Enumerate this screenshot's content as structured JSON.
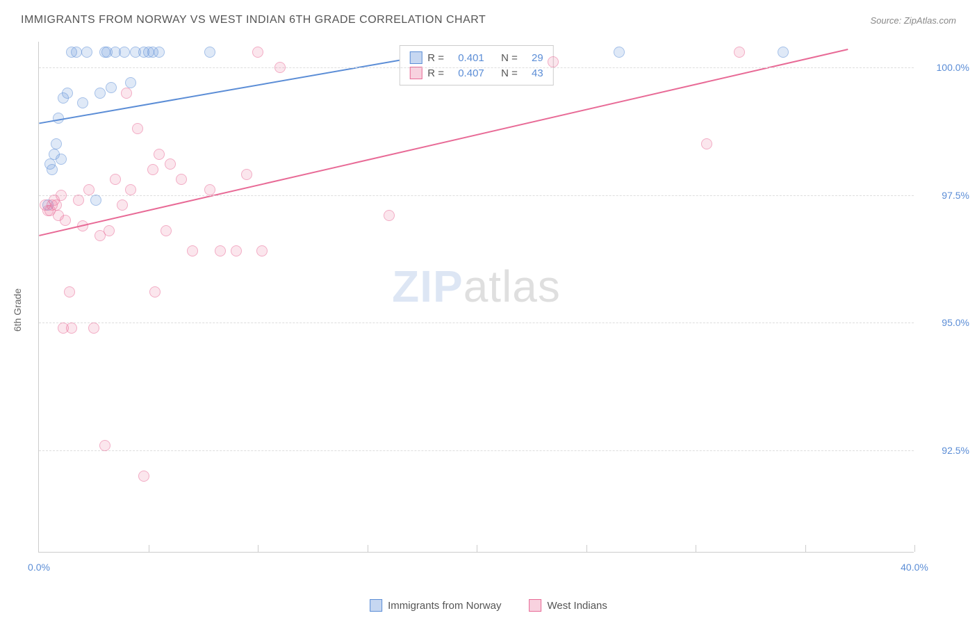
{
  "title": "IMMIGRANTS FROM NORWAY VS WEST INDIAN 6TH GRADE CORRELATION CHART",
  "source": "Source: ZipAtlas.com",
  "ylabel": "6th Grade",
  "watermark": {
    "bold": "ZIP",
    "light": "atlas"
  },
  "chart": {
    "type": "scatter",
    "xlim": [
      0,
      40
    ],
    "ylim": [
      90.5,
      100.5
    ],
    "x_ticks": [
      0,
      20,
      40
    ],
    "x_tick_labels": [
      "0.0%",
      "",
      "40.0%"
    ],
    "y_ticks": [
      92.5,
      95.0,
      97.5,
      100.0
    ],
    "y_tick_labels": [
      "92.5%",
      "95.0%",
      "97.5%",
      "100.0%"
    ],
    "x_minor_grid": [
      5,
      10,
      15,
      20,
      25,
      30,
      35,
      40
    ],
    "background_color": "#ffffff",
    "grid_color": "#dddddd",
    "axis_color": "#cccccc",
    "label_fontsize": 14,
    "tick_color": "#5b8dd6",
    "marker_radius": 8,
    "marker_stroke_width": 1.5,
    "series": [
      {
        "name": "Immigrants from Norway",
        "color": "#5b8dd6",
        "fill": "rgba(91,141,214,0.35)",
        "R": "0.401",
        "N": "29",
        "trend": {
          "x1": 0,
          "y1": 98.9,
          "x2": 18,
          "y2": 100.25,
          "width": 2
        },
        "points": [
          [
            0.4,
            97.3
          ],
          [
            0.5,
            98.1
          ],
          [
            0.6,
            98.0
          ],
          [
            0.7,
            98.3
          ],
          [
            0.8,
            98.5
          ],
          [
            0.9,
            99.0
          ],
          [
            1.0,
            98.2
          ],
          [
            1.1,
            99.4
          ],
          [
            1.3,
            99.5
          ],
          [
            1.5,
            100.3
          ],
          [
            1.7,
            100.3
          ],
          [
            2.0,
            99.3
          ],
          [
            2.2,
            100.3
          ],
          [
            2.8,
            99.5
          ],
          [
            3.0,
            100.3
          ],
          [
            3.1,
            100.3
          ],
          [
            3.3,
            99.6
          ],
          [
            3.5,
            100.3
          ],
          [
            3.9,
            100.3
          ],
          [
            4.2,
            99.7
          ],
          [
            4.4,
            100.3
          ],
          [
            4.8,
            100.3
          ],
          [
            5.0,
            100.3
          ],
          [
            5.2,
            100.3
          ],
          [
            5.5,
            100.3
          ],
          [
            7.8,
            100.3
          ],
          [
            2.6,
            97.4
          ],
          [
            26.5,
            100.3
          ],
          [
            34.0,
            100.3
          ]
        ]
      },
      {
        "name": "West Indians",
        "color": "#e86a96",
        "fill": "rgba(232,106,150,0.3)",
        "R": "0.407",
        "N": "43",
        "trend": {
          "x1": 0,
          "y1": 96.7,
          "x2": 37,
          "y2": 100.35,
          "width": 2
        },
        "points": [
          [
            0.3,
            97.3
          ],
          [
            0.4,
            97.2
          ],
          [
            0.5,
            97.2
          ],
          [
            0.6,
            97.3
          ],
          [
            0.7,
            97.4
          ],
          [
            0.8,
            97.3
          ],
          [
            0.9,
            97.1
          ],
          [
            1.0,
            97.5
          ],
          [
            1.1,
            94.9
          ],
          [
            1.2,
            97.0
          ],
          [
            1.4,
            95.6
          ],
          [
            1.5,
            94.9
          ],
          [
            1.8,
            97.4
          ],
          [
            2.0,
            96.9
          ],
          [
            2.3,
            97.6
          ],
          [
            2.5,
            94.9
          ],
          [
            2.8,
            96.7
          ],
          [
            3.0,
            92.6
          ],
          [
            3.2,
            96.8
          ],
          [
            3.5,
            97.8
          ],
          [
            3.8,
            97.3
          ],
          [
            4.0,
            99.5
          ],
          [
            4.2,
            97.6
          ],
          [
            4.5,
            98.8
          ],
          [
            4.8,
            92.0
          ],
          [
            5.2,
            98.0
          ],
          [
            5.3,
            95.6
          ],
          [
            5.5,
            98.3
          ],
          [
            5.8,
            96.8
          ],
          [
            6.0,
            98.1
          ],
          [
            6.5,
            97.8
          ],
          [
            7.0,
            96.4
          ],
          [
            7.8,
            97.6
          ],
          [
            8.3,
            96.4
          ],
          [
            9.0,
            96.4
          ],
          [
            9.5,
            97.9
          ],
          [
            10.0,
            100.3
          ],
          [
            10.2,
            96.4
          ],
          [
            11.0,
            100.0
          ],
          [
            16.0,
            97.1
          ],
          [
            23.5,
            100.1
          ],
          [
            30.5,
            98.5
          ],
          [
            32.0,
            100.3
          ]
        ]
      }
    ]
  },
  "legend_top_labels": {
    "R": "R =",
    "N": "N ="
  },
  "legend_bottom": [
    "Immigrants from Norway",
    "West Indians"
  ]
}
